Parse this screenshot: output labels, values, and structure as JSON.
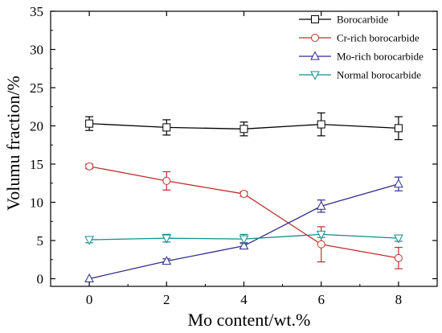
{
  "chart_data": {
    "type": "line",
    "title": "",
    "xlabel": "Mo content/wt.%",
    "ylabel": "Volumu fraction/%",
    "xlim": [
      -1,
      9
    ],
    "ylim": [
      -1,
      35
    ],
    "xticks": [
      0,
      2,
      4,
      6,
      8
    ],
    "yticks": [
      0,
      5,
      10,
      15,
      20,
      25,
      30,
      35
    ],
    "legend_position": "top-right",
    "grid": false,
    "x": [
      0,
      2,
      4,
      6,
      8
    ],
    "series": [
      {
        "name": "Borocarbide",
        "marker": "square",
        "color": "#000000",
        "values": [
          20.3,
          19.8,
          19.6,
          20.2,
          19.7
        ],
        "errors": [
          0.9,
          1.0,
          0.9,
          1.5,
          1.5
        ]
      },
      {
        "name": "Cr-rich borocarbide",
        "marker": "circle",
        "color": "#c0302c",
        "values": [
          14.7,
          12.8,
          11.1,
          4.5,
          2.7
        ],
        "errors": [
          0.3,
          1.2,
          0.3,
          2.3,
          1.4
        ]
      },
      {
        "name": "Mo-rich borocarbide",
        "marker": "triangle-up",
        "color": "#2e2c8c",
        "values": [
          0.0,
          2.3,
          4.3,
          9.5,
          12.4
        ],
        "errors": [
          0.0,
          0.3,
          0.4,
          0.8,
          0.9
        ]
      },
      {
        "name": "Normal borocarbide",
        "marker": "triangle-down",
        "color": "#138c8c",
        "values": [
          5.1,
          5.3,
          5.2,
          5.8,
          5.3
        ],
        "errors": [
          0.4,
          0.5,
          0.6,
          0.4,
          0.4
        ]
      }
    ]
  }
}
